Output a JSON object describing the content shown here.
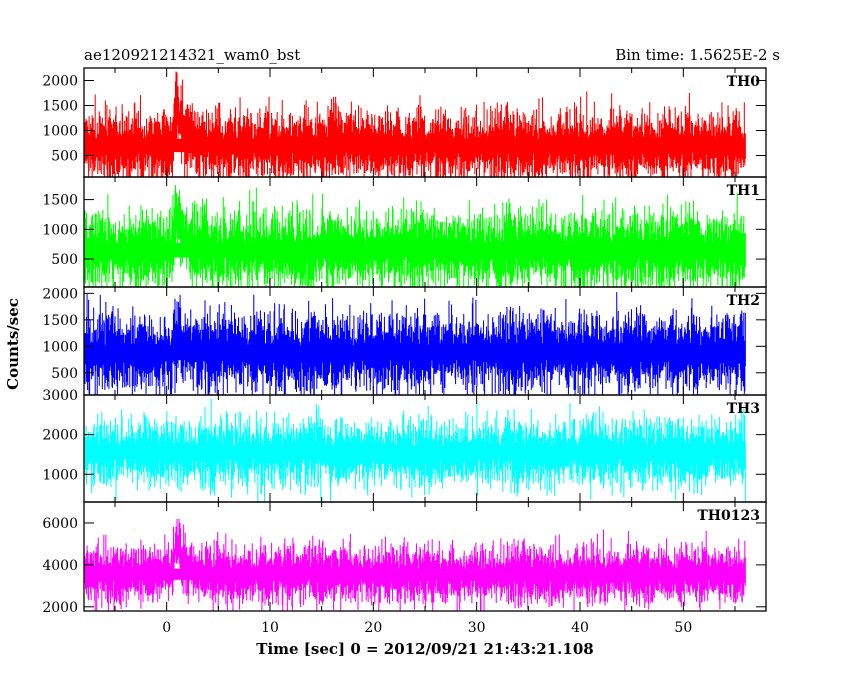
{
  "chart_data": {
    "type": "line",
    "title": "ae120921214321_wam0_bst",
    "bin_time_label": "Bin time: 1.5625E-2 s",
    "xlabel": "Time [sec] 0 = 2012/09/21 21:43:21.108",
    "ylabel": "Counts/sec",
    "xlim": [
      -8,
      58
    ],
    "data_range": [
      -7.9,
      56
    ],
    "x_ticks": [
      0,
      10,
      20,
      30,
      40,
      50
    ],
    "x_tick_labels": [
      "0",
      "10",
      "20",
      "30",
      "40",
      "50"
    ],
    "series": [
      {
        "name": "TH0",
        "color": "#ff0000",
        "ylim": [
          70,
          2250
        ],
        "y_ticks": [
          500,
          1000,
          1500,
          2000
        ],
        "y_tick_labels": [
          "500",
          "1000",
          "1500",
          "2000"
        ],
        "baseline": 700,
        "spread": 380,
        "peak_time": 0.9,
        "peak_amplitude": 700
      },
      {
        "name": "TH1",
        "color": "#00ff00",
        "ylim": [
          30,
          1880
        ],
        "y_ticks": [
          500,
          1000,
          1500
        ],
        "y_tick_labels": [
          "500",
          "1000",
          "1500"
        ],
        "baseline": 650,
        "spread": 350,
        "peak_time": 0.9,
        "peak_amplitude": 550
      },
      {
        "name": "TH2",
        "color": "#0000ff",
        "ylim": [
          80,
          2120
        ],
        "y_ticks": [
          500,
          1000,
          1500,
          2000
        ],
        "y_tick_labels": [
          "500",
          "1000",
          "1500",
          "2000"
        ],
        "baseline": 880,
        "spread": 400,
        "peak_time": 0.9,
        "peak_amplitude": 200
      },
      {
        "name": "TH3",
        "color": "#00ffff",
        "ylim": [
          300,
          3000
        ],
        "y_ticks": [
          1000,
          2000,
          3000
        ],
        "y_tick_labels": [
          "1000",
          "2000",
          "3000"
        ],
        "baseline": 1550,
        "spread": 450,
        "peak_time": 0.9,
        "peak_amplitude": 0
      },
      {
        "name": "TH0123",
        "color": "#ff00ff",
        "ylim": [
          1800,
          7000
        ],
        "y_ticks": [
          2000,
          4000,
          6000
        ],
        "y_tick_labels": [
          "2000",
          "4000",
          "6000"
        ],
        "baseline": 3550,
        "spread": 750,
        "peak_time": 0.9,
        "peak_amplitude": 1500
      }
    ]
  }
}
